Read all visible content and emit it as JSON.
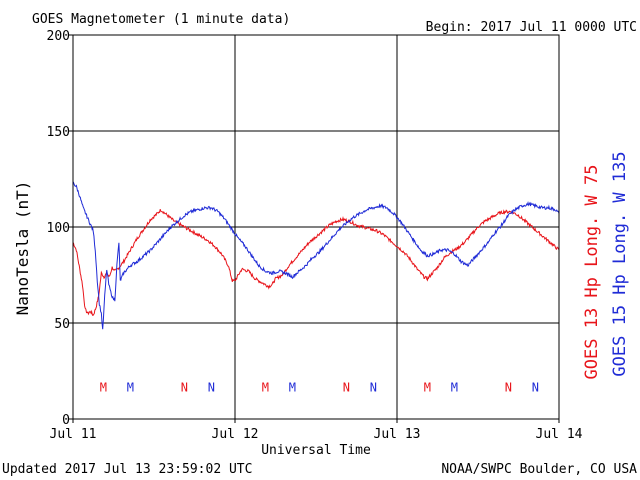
{
  "header": {
    "title": "GOES Magnetometer (1 minute data)",
    "begin": "Begin:  2017 Jul 11 0000 UTC"
  },
  "footer": {
    "updated": "Updated 2017 Jul 13 23:59:02 UTC",
    "credit": "NOAA/SWPC Boulder, CO USA"
  },
  "colors": {
    "goes13": "#e8141a",
    "goes15": "#1f2bd6",
    "axes": "#000000"
  },
  "chart_data": {
    "type": "line",
    "xlabel": "Universal Time",
    "ylabel": "NanoTesla (nT)",
    "xlim": [
      0,
      72
    ],
    "ylim": [
      0,
      200
    ],
    "grid": true,
    "x_unit": "hours since 2017 Jul 11 0000 UTC",
    "yticks": [
      0,
      50,
      100,
      150,
      200
    ],
    "xticks": [
      {
        "x": 0,
        "label": "Jul 11"
      },
      {
        "x": 24,
        "label": "Jul 12"
      },
      {
        "x": 48,
        "label": "Jul 13"
      },
      {
        "x": 72,
        "label": "Jul 14"
      }
    ],
    "series": [
      {
        "name": "GOES 13 Hp  Long. W 75",
        "color": "#e8141a",
        "points": [
          [
            0,
            92
          ],
          [
            0.5,
            88
          ],
          [
            1,
            78
          ],
          [
            1.4,
            70
          ],
          [
            1.8,
            57
          ],
          [
            2.2,
            55
          ],
          [
            2.6,
            56
          ],
          [
            3,
            54
          ],
          [
            3.4,
            58
          ],
          [
            3.8,
            64
          ],
          [
            4.2,
            76
          ],
          [
            4.6,
            74
          ],
          [
            5,
            76
          ],
          [
            5.4,
            74
          ],
          [
            5.8,
            79
          ],
          [
            6.2,
            77
          ],
          [
            6.6,
            78
          ],
          [
            7.5,
            82
          ],
          [
            8.5,
            88
          ],
          [
            9.5,
            94
          ],
          [
            10.5,
            99
          ],
          [
            11.5,
            104
          ],
          [
            12.5,
            107
          ],
          [
            13,
            109
          ],
          [
            14,
            106
          ],
          [
            15,
            103
          ],
          [
            16,
            101
          ],
          [
            17,
            99
          ],
          [
            18,
            97
          ],
          [
            19,
            95
          ],
          [
            20,
            93
          ],
          [
            21,
            90
          ],
          [
            22,
            86
          ],
          [
            23,
            80
          ],
          [
            23.6,
            72
          ],
          [
            24,
            72
          ],
          [
            24.5,
            75
          ],
          [
            25,
            78
          ],
          [
            26,
            77
          ],
          [
            27,
            73
          ],
          [
            28,
            71
          ],
          [
            29,
            69
          ],
          [
            29.5,
            70
          ],
          [
            30,
            73
          ],
          [
            31,
            75
          ],
          [
            32,
            80
          ],
          [
            33,
            84
          ],
          [
            34,
            88
          ],
          [
            35,
            92
          ],
          [
            36,
            95
          ],
          [
            37,
            98
          ],
          [
            38,
            101
          ],
          [
            39,
            103
          ],
          [
            40,
            104
          ],
          [
            41,
            103
          ],
          [
            42,
            101
          ],
          [
            43,
            100
          ],
          [
            44,
            99
          ],
          [
            45,
            98
          ],
          [
            46,
            96
          ],
          [
            47,
            93
          ],
          [
            48,
            90
          ],
          [
            49,
            87
          ],
          [
            50,
            83
          ],
          [
            51,
            78
          ],
          [
            52,
            74
          ],
          [
            52.5,
            73
          ],
          [
            53,
            75
          ],
          [
            54,
            79
          ],
          [
            55,
            84
          ],
          [
            56,
            87
          ],
          [
            57,
            89
          ],
          [
            58,
            92
          ],
          [
            59,
            96
          ],
          [
            60,
            100
          ],
          [
            61,
            103
          ],
          [
            62,
            105
          ],
          [
            63,
            107
          ],
          [
            64,
            108
          ],
          [
            65,
            108
          ],
          [
            66,
            106
          ],
          [
            67,
            103
          ],
          [
            68,
            100
          ],
          [
            69,
            97
          ],
          [
            70,
            94
          ],
          [
            71,
            91
          ],
          [
            72,
            88
          ]
        ]
      },
      {
        "name": "GOES 15 Hp  Long. W 135",
        "color": "#1f2bd6",
        "points": [
          [
            0,
            123
          ],
          [
            0.5,
            121
          ],
          [
            1,
            116
          ],
          [
            1.5,
            110
          ],
          [
            2,
            106
          ],
          [
            2.5,
            102
          ],
          [
            3,
            98
          ],
          [
            3.3,
            88
          ],
          [
            3.6,
            72
          ],
          [
            3.9,
            60
          ],
          [
            4.2,
            55
          ],
          [
            4.4,
            46
          ],
          [
            4.7,
            64
          ],
          [
            5,
            78
          ],
          [
            5.3,
            70
          ],
          [
            5.6,
            66
          ],
          [
            5.9,
            63
          ],
          [
            6.2,
            62
          ],
          [
            6.5,
            80
          ],
          [
            6.8,
            92
          ],
          [
            7,
            72
          ],
          [
            7.5,
            76
          ],
          [
            8.5,
            80
          ],
          [
            9.5,
            82
          ],
          [
            10.5,
            85
          ],
          [
            11.5,
            88
          ],
          [
            12.5,
            92
          ],
          [
            13.5,
            96
          ],
          [
            14.5,
            100
          ],
          [
            15.5,
            103
          ],
          [
            16.5,
            106
          ],
          [
            17.5,
            108
          ],
          [
            18.5,
            109
          ],
          [
            19.5,
            110
          ],
          [
            20.5,
            110
          ],
          [
            21.5,
            108
          ],
          [
            22.5,
            104
          ],
          [
            23.5,
            99
          ],
          [
            24.5,
            94
          ],
          [
            25.5,
            90
          ],
          [
            26.5,
            85
          ],
          [
            27.5,
            80
          ],
          [
            28.5,
            77
          ],
          [
            29.5,
            76
          ],
          [
            30.5,
            77
          ],
          [
            31.5,
            76
          ],
          [
            32.5,
            74
          ],
          [
            33.5,
            77
          ],
          [
            34.5,
            80
          ],
          [
            35.5,
            84
          ],
          [
            36.5,
            87
          ],
          [
            37.5,
            91
          ],
          [
            38.5,
            95
          ],
          [
            39.5,
            99
          ],
          [
            40.5,
            102
          ],
          [
            41.5,
            105
          ],
          [
            42.5,
            107
          ],
          [
            43.5,
            109
          ],
          [
            44.5,
            110
          ],
          [
            45.5,
            111
          ],
          [
            46.5,
            110
          ],
          [
            47.5,
            107
          ],
          [
            48.5,
            103
          ],
          [
            49.5,
            98
          ],
          [
            50.5,
            93
          ],
          [
            51.5,
            88
          ],
          [
            52.5,
            85
          ],
          [
            53.5,
            86
          ],
          [
            54.5,
            88
          ],
          [
            55.5,
            88
          ],
          [
            56.5,
            86
          ],
          [
            57.5,
            82
          ],
          [
            58.5,
            80
          ],
          [
            59.5,
            84
          ],
          [
            60.5,
            88
          ],
          [
            61.5,
            92
          ],
          [
            62.5,
            97
          ],
          [
            63.5,
            101
          ],
          [
            64.5,
            106
          ],
          [
            65.5,
            109
          ],
          [
            66.5,
            111
          ],
          [
            67.5,
            112
          ],
          [
            68.5,
            111
          ],
          [
            69.5,
            110
          ],
          [
            70.5,
            110
          ],
          [
            71.5,
            109
          ],
          [
            72,
            107
          ]
        ]
      }
    ],
    "annotations": [
      {
        "text": "M",
        "x": 4.5,
        "series": "GOES 13 Hp  Long. W 75"
      },
      {
        "text": "M",
        "x": 8.5,
        "series": "GOES 15 Hp  Long. W 135"
      },
      {
        "text": "N",
        "x": 16.5,
        "series": "GOES 13 Hp  Long. W 75"
      },
      {
        "text": "N",
        "x": 20.5,
        "series": "GOES 15 Hp  Long. W 135"
      },
      {
        "text": "M",
        "x": 28.5,
        "series": "GOES 13 Hp  Long. W 75"
      },
      {
        "text": "M",
        "x": 32.5,
        "series": "GOES 15 Hp  Long. W 135"
      },
      {
        "text": "N",
        "x": 40.5,
        "series": "GOES 13 Hp  Long. W 75"
      },
      {
        "text": "N",
        "x": 44.5,
        "series": "GOES 15 Hp  Long. W 135"
      },
      {
        "text": "M",
        "x": 52.5,
        "series": "GOES 13 Hp  Long. W 75"
      },
      {
        "text": "M",
        "x": 56.5,
        "series": "GOES 15 Hp  Long. W 135"
      },
      {
        "text": "N",
        "x": 64.5,
        "series": "GOES 13 Hp  Long. W 75"
      },
      {
        "text": "N",
        "x": 68.5,
        "series": "GOES 15 Hp  Long. W 135"
      }
    ],
    "annotation_y": 17
  }
}
